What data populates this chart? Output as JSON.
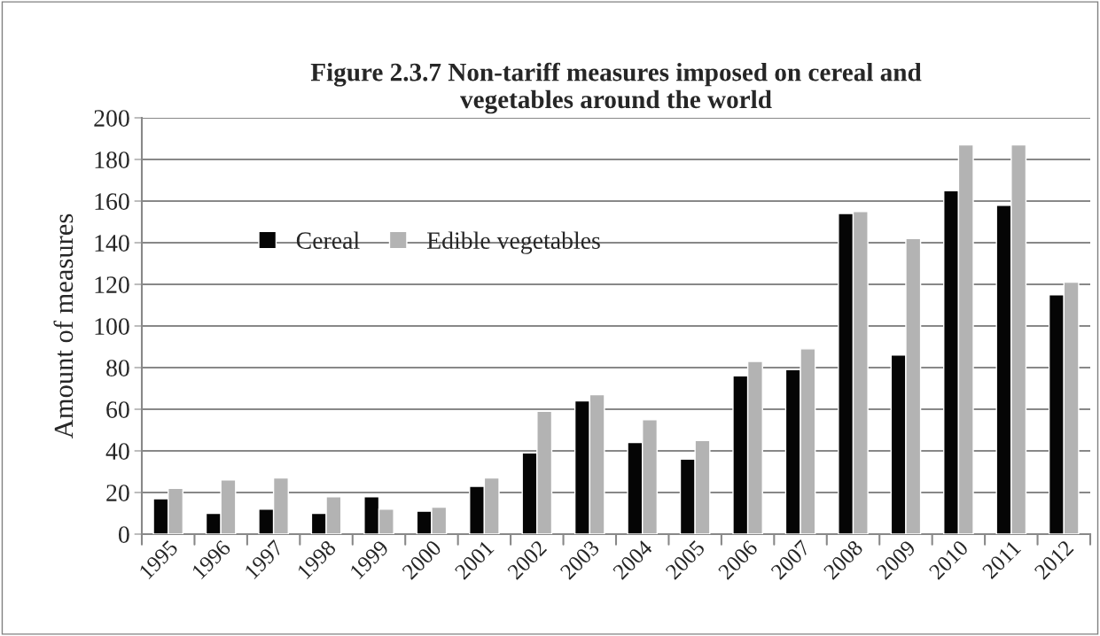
{
  "chart_data": {
    "type": "bar",
    "title": "Figure 2.3.7 Non-tariff measures imposed on cereal and\nvegetables around the world",
    "ylabel": "Amount of measures",
    "categories": [
      "1995",
      "1996",
      "1997",
      "1998",
      "1999",
      "2000",
      "2001",
      "2002",
      "2003",
      "2004",
      "2005",
      "2006",
      "2007",
      "2008",
      "2009",
      "2010",
      "2011",
      "2012"
    ],
    "series": [
      {
        "name": "Cereal",
        "color": "#050505",
        "values": [
          17,
          10,
          12,
          10,
          18,
          11,
          23,
          39,
          64,
          44,
          36,
          76,
          79,
          154,
          86,
          165,
          158,
          115
        ]
      },
      {
        "name": "Edible vegetables",
        "color": "#b3b3b3",
        "values": [
          22,
          26,
          27,
          18,
          12,
          13,
          27,
          59,
          67,
          55,
          45,
          83,
          89,
          155,
          142,
          187,
          187,
          121
        ]
      }
    ],
    "ylim": [
      0,
      200
    ],
    "yticks": [
      0,
      20,
      40,
      60,
      80,
      100,
      120,
      140,
      160,
      180,
      200
    ],
    "grid": "y",
    "legend": "center left"
  }
}
